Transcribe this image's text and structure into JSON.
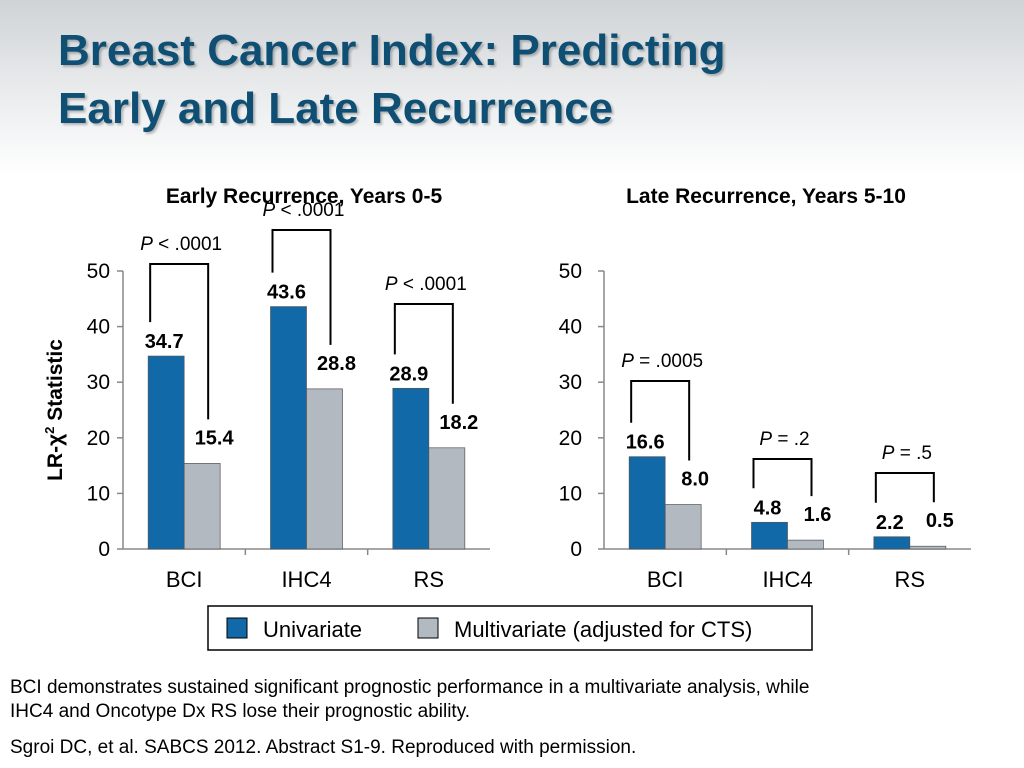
{
  "slide": {
    "title_line1": "Breast Cancer Index: Predicting",
    "title_line2": "Early and Late Recurrence",
    "caption_line1": "BCI demonstrates sustained significant prognostic performance in a multivariate analysis, while",
    "caption_line2": "IHC4 and Oncotype Dx RS lose their prognostic ability.",
    "citation": "Sgroi DC, et al. SABCS 2012. Abstract S1-9. Reproduced with permission."
  },
  "colors": {
    "univariate": "#1169a8",
    "multivariate": "#b2b9c0",
    "title": "#0f4f73"
  },
  "legend": {
    "items": [
      "Univariate",
      "Multivariate (adjusted for CTS)"
    ]
  },
  "chart_data": [
    {
      "type": "bar",
      "title": "Early Recurrence, Years 0-5",
      "ylabel_prefix": "LR-χ",
      "ylabel_sup": "2",
      "ylabel_suffix": " Statistic",
      "ylim": [
        0,
        50
      ],
      "yticks": [
        0,
        10,
        20,
        30,
        40,
        50
      ],
      "categories": [
        "BCI",
        "IHC4",
        "RS"
      ],
      "series": [
        {
          "name": "Univariate",
          "values": [
            34.7,
            43.6,
            28.9
          ],
          "labels": [
            "34.7",
            "43.6",
            "28.9"
          ]
        },
        {
          "name": "Multivariate (adjusted for CTS)",
          "values": [
            15.4,
            28.8,
            18.2
          ],
          "labels": [
            "15.4",
            "28.8",
            "18.2"
          ]
        }
      ],
      "annotations": [
        {
          "prefix": "P",
          "text": " < .0001"
        },
        {
          "prefix": "P",
          "text": " < .0001"
        },
        {
          "prefix": "P",
          "text": " < .0001"
        }
      ]
    },
    {
      "type": "bar",
      "title": "Late Recurrence, Years 5-10",
      "ylim": [
        0,
        50
      ],
      "yticks": [
        0,
        10,
        20,
        30,
        40,
        50
      ],
      "categories": [
        "BCI",
        "IHC4",
        "RS"
      ],
      "series": [
        {
          "name": "Univariate",
          "values": [
            16.6,
            4.8,
            2.2
          ],
          "labels": [
            "16.6",
            "4.8",
            "2.2"
          ]
        },
        {
          "name": "Multivariate (adjusted for CTS)",
          "values": [
            8.0,
            1.6,
            0.5
          ],
          "labels": [
            "8.0",
            "1.6",
            "0.5"
          ]
        }
      ],
      "annotations": [
        {
          "prefix": "P",
          "text": " = .0005"
        },
        {
          "prefix": "P",
          "text": " = .2"
        },
        {
          "prefix": "P",
          "text": " = .5"
        }
      ]
    }
  ]
}
